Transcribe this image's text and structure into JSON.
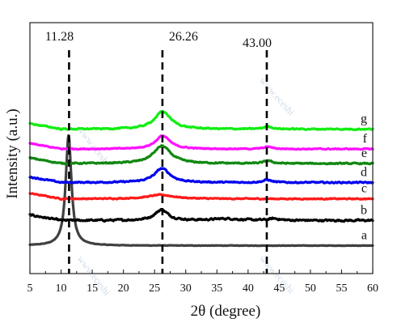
{
  "chart_data": {
    "type": "line",
    "xlabel": "2θ (degree)",
    "ylabel": "Intensity (a.u.)",
    "xlim": [
      5,
      60
    ],
    "x_ticks": [
      "5",
      "10",
      "15",
      "20",
      "25",
      "30",
      "35",
      "40",
      "45",
      "50",
      "55",
      "60"
    ],
    "y_ticks": "none",
    "grid": false,
    "legend": "labels at right end of each curve",
    "reference_lines": [
      {
        "x": 11.28,
        "label": "11.28"
      },
      {
        "x": 26.26,
        "label": "26.26"
      },
      {
        "x": 43.0,
        "label": "43.00"
      }
    ],
    "series": [
      {
        "name": "a",
        "color": "#404040",
        "offset": 0,
        "baseline": 1.2,
        "peaks": [
          [
            11.2,
            25,
            0.55
          ]
        ],
        "noise": 0.08
      },
      {
        "name": "b",
        "color": "#000000",
        "offset": 5.5,
        "baseline": 1.4,
        "peaks": [
          [
            26.1,
            2.4,
            1.3
          ],
          [
            36.5,
            0.4,
            2.5
          ],
          [
            44.2,
            0.4,
            1.0
          ]
        ],
        "noise": 0.35
      },
      {
        "name": "c",
        "color": "#ff1a1a",
        "offset": 11.0,
        "baseline": 0.8,
        "peaks": [
          [
            26.0,
            0.9,
            2.5
          ]
        ],
        "noise": 0.2
      },
      {
        "name": "d",
        "color": "#0000ee",
        "offset": 14.5,
        "baseline": 1.0,
        "peaks": [
          [
            26.2,
            3.2,
            1.5
          ],
          [
            43.1,
            0.6,
            0.8
          ]
        ],
        "noise": 0.25
      },
      {
        "name": "e",
        "color": "#118811",
        "offset": 19.0,
        "baseline": 0.8,
        "peaks": [
          [
            26.2,
            4.0,
            1.7
          ],
          [
            43.2,
            0.6,
            0.8
          ]
        ],
        "noise": 0.25
      },
      {
        "name": "f",
        "color": "#ff11ff",
        "offset": 22.3,
        "baseline": 0.8,
        "peaks": [
          [
            26.3,
            3.0,
            1.4
          ],
          [
            43.2,
            0.5,
            0.8
          ]
        ],
        "noise": 0.2
      },
      {
        "name": "g",
        "color": "#11ee11",
        "offset": 27.0,
        "baseline": 0.6,
        "peaks": [
          [
            26.3,
            4.0,
            1.6
          ],
          [
            43.2,
            0.6,
            0.8
          ]
        ],
        "noise": 0.25
      }
    ]
  }
}
